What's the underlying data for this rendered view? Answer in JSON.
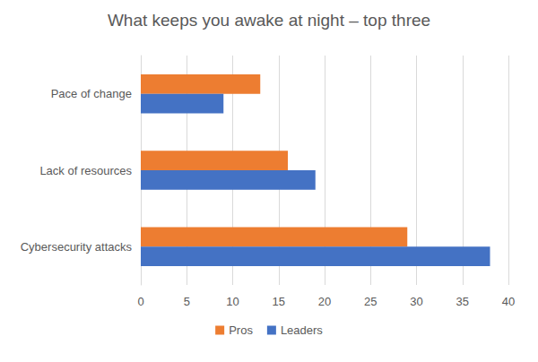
{
  "chart_data": {
    "type": "bar",
    "orientation": "horizontal",
    "title": "What keeps you awake at night – top three",
    "categories": [
      "Pace of change",
      "Lack of resources",
      "Cybersecurity attacks"
    ],
    "series": [
      {
        "name": "Pros",
        "color": "#ed7d31",
        "values": [
          13,
          16,
          29
        ]
      },
      {
        "name": "Leaders",
        "color": "#4472c4",
        "values": [
          9,
          19,
          38
        ]
      }
    ],
    "xlim": [
      0,
      40
    ],
    "xticks": [
      0,
      5,
      10,
      15,
      20,
      25,
      30,
      35,
      40
    ],
    "grid": true,
    "legend": "bottom"
  }
}
